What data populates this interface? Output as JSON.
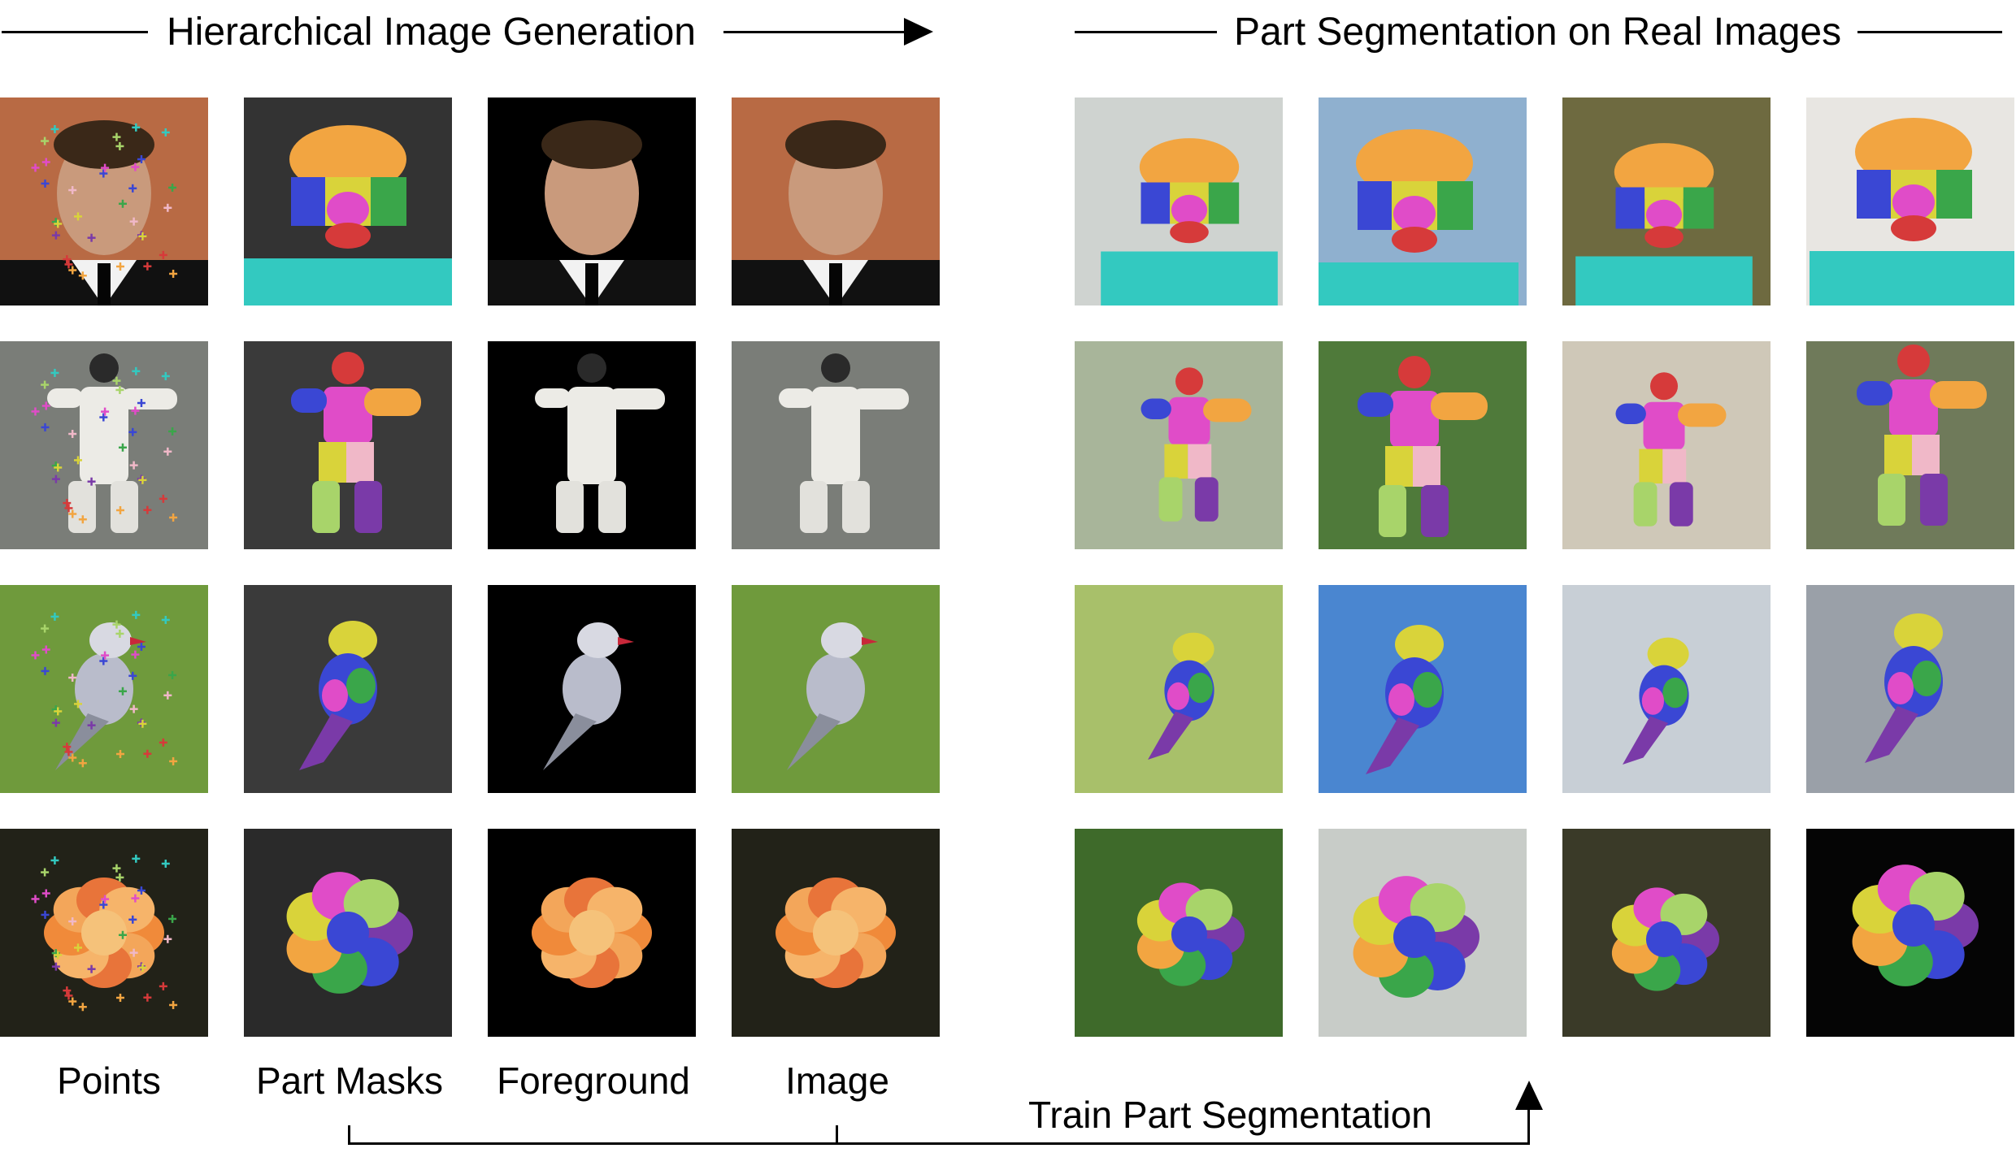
{
  "header": {
    "left_title": "Hierarchical Image Generation",
    "right_title": "Part Segmentation on Real Images"
  },
  "columns": {
    "points": "Points",
    "part_masks": "Part Masks",
    "foreground": "Foreground",
    "image": "Image"
  },
  "footer": {
    "train_label": "Train Part Segmentation"
  },
  "rows": [
    {
      "subject": "face"
    },
    {
      "subject": "person"
    },
    {
      "subject": "bird"
    },
    {
      "subject": "flower"
    }
  ],
  "part_colors": [
    "#f2a541",
    "#3a47d4",
    "#e04cc8",
    "#d63a3a",
    "#3aa64a",
    "#33c9c0",
    "#d9d33a",
    "#7a3aa8",
    "#a8d46a",
    "#f0b8c8"
  ]
}
